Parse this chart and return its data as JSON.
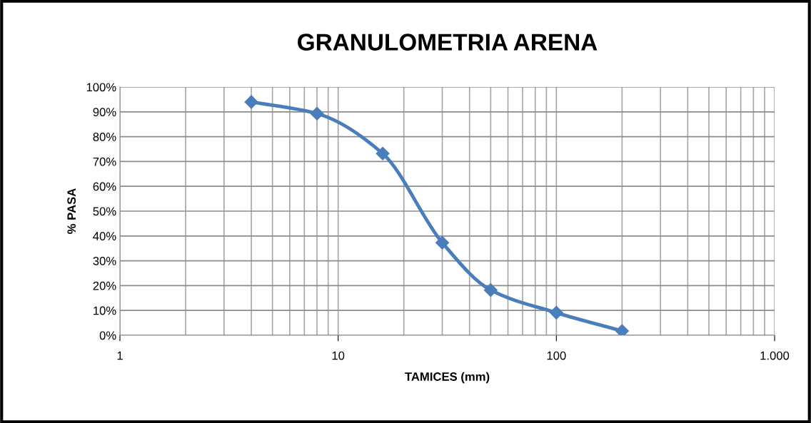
{
  "chart_data": {
    "type": "line",
    "title": "GRANULOMETRIA ARENA",
    "xlabel": "TAMICES (mm)",
    "ylabel": "% PASA",
    "x": [
      4,
      8,
      16,
      30,
      50,
      100,
      200
    ],
    "series": [
      {
        "color": "#4a7ebb",
        "values": [
          94,
          89.3,
          73.2,
          37.3,
          18.2,
          9.1,
          1.7
        ]
      }
    ],
    "log": "x",
    "xlim": [
      1,
      1000
    ],
    "xticks": [
      1,
      10,
      100,
      {
        "value": 1000,
        "label": "1.000"
      }
    ],
    "ylim": [
      0,
      100
    ],
    "yticks": [
      {
        "value": 0,
        "label": "0%"
      },
      {
        "value": 10,
        "label": "10%"
      },
      {
        "value": 20,
        "label": "20%"
      },
      {
        "value": 30,
        "label": "30%"
      },
      {
        "value": 40,
        "label": "40%"
      },
      {
        "value": 50,
        "label": "50%"
      },
      {
        "value": 60,
        "label": "60%"
      },
      {
        "value": 70,
        "label": "70%"
      },
      {
        "value": 80,
        "label": "80%"
      },
      {
        "value": 90,
        "label": "90%"
      },
      {
        "value": 100,
        "label": "100%"
      }
    ],
    "grid": true,
    "marker": "diamond",
    "line_style": "solid"
  }
}
